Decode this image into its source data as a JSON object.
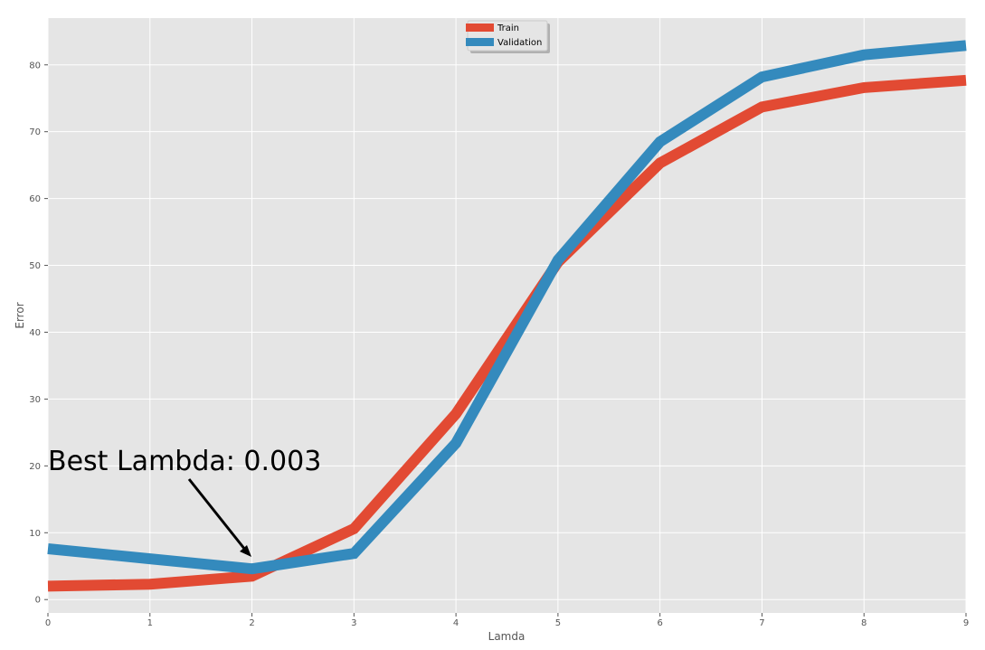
{
  "chart_data": {
    "type": "line",
    "x": [
      0,
      1,
      2,
      3,
      4,
      5,
      6,
      7,
      8,
      9
    ],
    "series": [
      {
        "name": "Train",
        "color": "#e24a33",
        "values": [
          2.0,
          2.3,
          3.5,
          10.6,
          27.8,
          50.5,
          65.3,
          73.7,
          76.6,
          77.7
        ]
      },
      {
        "name": "Validation",
        "color": "#348abd",
        "values": [
          7.6,
          6.1,
          4.6,
          6.9,
          23.4,
          50.8,
          68.5,
          78.2,
          81.5,
          82.9
        ]
      }
    ],
    "title": "",
    "xlabel": "Lamda",
    "ylabel": "Error",
    "xlim": [
      0,
      9
    ],
    "ylim": [
      -2,
      87
    ],
    "xticks": [
      "0",
      "1",
      "2",
      "3",
      "4",
      "5",
      "6",
      "7",
      "8",
      "9"
    ],
    "yticks": [
      "0",
      "10",
      "20",
      "30",
      "40",
      "50",
      "60",
      "70",
      "80"
    ],
    "grid": true,
    "background": "#e5e5e5",
    "legend_position": "top-center",
    "annotation": {
      "text": "Best Lambda: 0.003",
      "x": 2,
      "y": 4.6
    }
  }
}
